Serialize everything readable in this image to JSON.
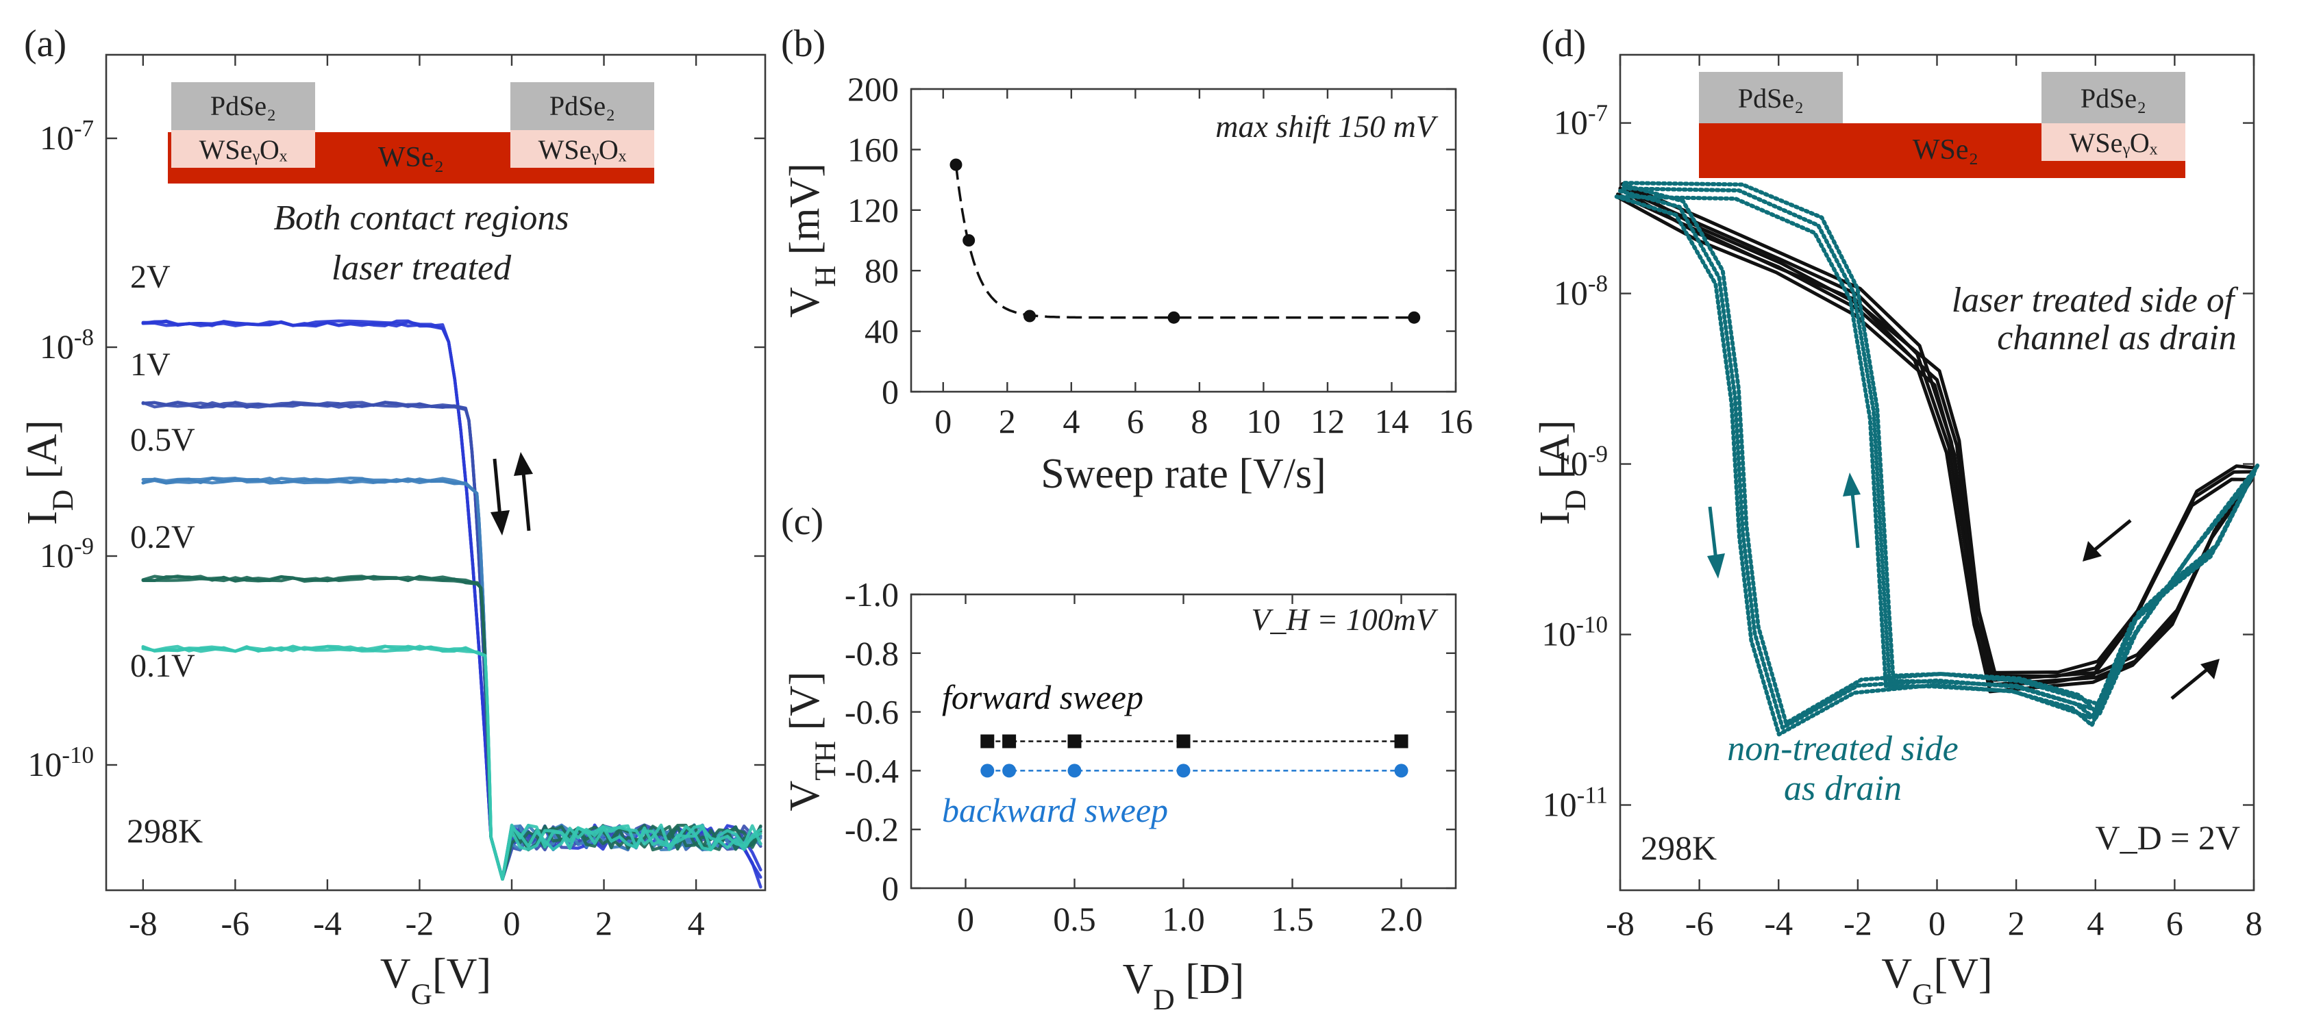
{
  "colors": {
    "v2": "#2b3bd6",
    "v1": "#3b4fb0",
    "v05": "#3f80bd",
    "v02": "#1e6a58",
    "v01": "#35c4b0",
    "black": "#111111",
    "teal": "#0f6f7a",
    "blue": "#1f78d1",
    "pdse2": "#b8b8b8",
    "wseox": "#f7d5cc",
    "wse2": "#cc2200"
  },
  "panel_a": {
    "label": "(a)",
    "device": {
      "left_top": "PdSe₂",
      "left_bottom": "WSeᵧOₓ",
      "channel": "WSe₂",
      "right_top": "PdSe₂",
      "right_bottom": "WSeᵧOₓ"
    },
    "caption_line1": "Both contact regions",
    "caption_line2": "laser treated",
    "temperature": "298K",
    "curve_labels": [
      "2V",
      "1V",
      "0.5V",
      "0.2V",
      "0.1V"
    ]
  },
  "panel_b": {
    "label": "(b)",
    "annotation": "max shift 150 mV"
  },
  "panel_c": {
    "label": "(c)",
    "annotation": "V_H = 100mV",
    "forward_label": "forward sweep",
    "backward_label": "backward sweep"
  },
  "panel_d": {
    "label": "(d)",
    "device": {
      "left_top": "PdSe₂",
      "channel": "WSe₂",
      "right_top": "PdSe₂",
      "right_bottom": "WSeᵧOₓ"
    },
    "laser_label_line1": "laser treated side of",
    "laser_label_line2": "channel as drain",
    "nontreated_label_line1": "non-treated side",
    "nontreated_label_line2": "as drain",
    "temperature": "298K",
    "vd_label": "V_D = 2V"
  },
  "chart_data": [
    {
      "id": "a",
      "type": "line",
      "title": "",
      "xlabel": "V_G[V]",
      "ylabel": "I_D [A]",
      "xlim": [
        -8.8,
        5.5
      ],
      "ylim_log10": [
        -10.6,
        -6.6
      ],
      "yscale": "log",
      "xticks": [
        -8,
        -6,
        -4,
        -2,
        0,
        2,
        4
      ],
      "yticks": [
        "10^-10",
        "10^-9",
        "10^-8",
        "10^-7"
      ],
      "series": [
        {
          "name": "2V",
          "on_current": 1.3e-08
        },
        {
          "name": "1V",
          "on_current": 5.3e-09
        },
        {
          "name": "0.5V",
          "on_current": 2.3e-09
        },
        {
          "name": "0.2V",
          "on_current": 7.8e-10
        },
        {
          "name": "0.1V",
          "on_current": 3.6e-10
        }
      ],
      "off_current": 4.5e-11,
      "threshold_vg": -0.4
    },
    {
      "id": "b",
      "type": "scatter",
      "xlabel": "Sweep rate [V/s]",
      "ylabel": "V_H [mV]",
      "xlim": [
        -1,
        16
      ],
      "ylim": [
        0,
        200
      ],
      "xticks": [
        0,
        2,
        4,
        6,
        8,
        10,
        12,
        14,
        16
      ],
      "yticks": [
        0,
        40,
        80,
        120,
        160,
        200
      ],
      "x": [
        0.4,
        0.8,
        2.7,
        7.2,
        14.7
      ],
      "y": [
        150,
        100,
        50,
        49,
        49
      ]
    },
    {
      "id": "c",
      "type": "scatter",
      "xlabel": "V_D [D]",
      "ylabel": "V_TH [V]",
      "xlim": [
        -0.25,
        2.25
      ],
      "ylim": [
        0,
        -1.0
      ],
      "xticks": [
        0,
        0.5,
        1.0,
        1.5,
        2.0
      ],
      "xticklabels": [
        "0",
        "0.5",
        "1.0",
        "1.5",
        "2.0"
      ],
      "yticks": [
        0,
        -0.2,
        -0.4,
        -0.6,
        -0.8,
        -1.0
      ],
      "yticklabels": [
        "0",
        "-0.2",
        "-0.4",
        "-0.6",
        "-0.8",
        "-1.0"
      ],
      "series": [
        {
          "name": "forward sweep",
          "x": [
            0.1,
            0.2,
            0.5,
            1.0,
            2.0
          ],
          "y": [
            -0.5,
            -0.5,
            -0.5,
            -0.5,
            -0.5
          ]
        },
        {
          "name": "backward sweep",
          "x": [
            0.1,
            0.2,
            0.5,
            1.0,
            2.0
          ],
          "y": [
            -0.4,
            -0.4,
            -0.4,
            -0.4,
            -0.4
          ]
        }
      ]
    },
    {
      "id": "d",
      "type": "line",
      "xlabel": "V_G[V]",
      "ylabel": "I_D [A]",
      "xlim": [
        -8,
        8
      ],
      "ylim_log10": [
        -11.5,
        -6.6
      ],
      "yscale": "log",
      "xticks": [
        -8,
        -6,
        -4,
        -2,
        0,
        2,
        4,
        6,
        8
      ],
      "yticks": [
        "10^-11",
        "10^-10",
        "10^-9",
        "10^-8",
        "10^-7"
      ],
      "series": [
        {
          "name": "laser treated side of channel as drain",
          "down": [
            [
              -8,
              -7.39
            ],
            [
              -6,
              -7.6
            ],
            [
              -4,
              -7.8
            ],
            [
              -2,
              -8.0
            ],
            [
              -0.5,
              -8.35
            ],
            [
              0.3,
              -8.9
            ],
            [
              1.0,
              -9.9
            ],
            [
              1.4,
              -10.25
            ],
            [
              3,
              -10.25
            ],
            [
              4,
              -10.2
            ],
            [
              5,
              -9.9
            ],
            [
              6.5,
              -9.2
            ],
            [
              7.5,
              -9.05
            ],
            [
              8,
              -9.05
            ]
          ],
          "up": [
            [
              8,
              -9.05
            ],
            [
              7,
              -9.4
            ],
            [
              6,
              -9.9
            ],
            [
              5,
              -10.15
            ],
            [
              4,
              -10.25
            ],
            [
              1.4,
              -10.3
            ],
            [
              1.0,
              -9.9
            ],
            [
              0.5,
              -8.9
            ],
            [
              0,
              -8.5
            ],
            [
              -2,
              -8.1
            ],
            [
              -4,
              -7.85
            ],
            [
              -6,
              -7.65
            ],
            [
              -8,
              -7.39
            ]
          ]
        },
        {
          "name": "non-treated side as drain",
          "down": [
            [
              -8,
              -7.39
            ],
            [
              -6.5,
              -7.5
            ],
            [
              -5.5,
              -7.9
            ],
            [
              -5.1,
              -8.6
            ],
            [
              -4.9,
              -9.4
            ],
            [
              -4.6,
              -10.0
            ],
            [
              -3.9,
              -10.55
            ],
            [
              -2,
              -10.3
            ],
            [
              0,
              -10.27
            ],
            [
              2,
              -10.3
            ],
            [
              3.5,
              -10.4
            ],
            [
              4,
              -10.5
            ],
            [
              5,
              -10.0
            ],
            [
              6.5,
              -9.5
            ],
            [
              8,
              -9.05
            ]
          ],
          "up": [
            [
              8,
              -9.05
            ],
            [
              7,
              -9.5
            ],
            [
              6,
              -9.7
            ],
            [
              5,
              -9.9
            ],
            [
              4.3,
              -10.3
            ],
            [
              4,
              -10.45
            ],
            [
              2,
              -10.3
            ],
            [
              0,
              -10.27
            ],
            [
              -1.2,
              -10.27
            ],
            [
              -1.3,
              -9.9
            ],
            [
              -1.6,
              -8.7
            ],
            [
              -2.1,
              -8.0
            ],
            [
              -3,
              -7.6
            ],
            [
              -5,
              -7.4
            ],
            [
              -8,
              -7.39
            ]
          ]
        }
      ]
    }
  ]
}
